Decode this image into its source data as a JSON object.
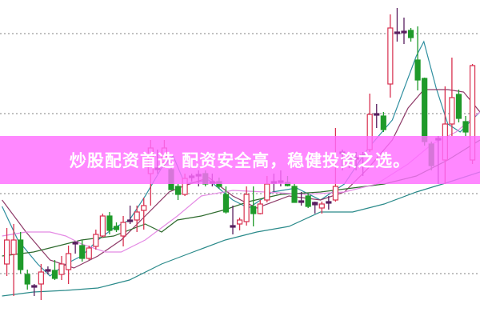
{
  "banner": {
    "text": "炒股配资首选 配资安全高，稳健投资之选。",
    "color": "#ff6eff"
  },
  "chart_data": {
    "type": "candlestick",
    "title": "",
    "xlabel": "",
    "ylabel": "",
    "xlim": [
      0,
      70.1
    ],
    "ylim": [
      4.2,
      44.2
    ],
    "grid": {
      "on": true,
      "style": "dotted",
      "levels": [
        10,
        20,
        30,
        40
      ]
    },
    "colors": {
      "up": "#d8304f",
      "down": "#1f9a2a",
      "doji": "#5a2060",
      "grid": "#9a9a9a"
    },
    "candles_ohlc": [
      [
        11.2,
        15.7,
        9.7,
        14.2
      ],
      [
        12.4,
        16.2,
        7.2,
        14.2
      ],
      [
        14.2,
        15.2,
        10.0,
        10.5
      ],
      [
        9.9,
        10.5,
        8.0,
        8.7
      ],
      [
        8.5,
        8.7,
        7.2,
        8.3
      ],
      [
        8.7,
        11.2,
        6.7,
        10.2
      ],
      [
        10.3,
        10.9,
        9.9,
        10.5
      ],
      [
        10.4,
        11.7,
        9.2,
        9.4
      ],
      [
        9.9,
        12.2,
        9.2,
        11.2
      ],
      [
        10.5,
        13.5,
        8.7,
        12.5
      ],
      [
        13.9,
        14.0,
        12.5,
        13.7
      ],
      [
        13.5,
        14.2,
        11.5,
        11.9
      ],
      [
        11.9,
        13.5,
        11.7,
        13.2
      ],
      [
        13.4,
        15.5,
        13.0,
        14.9
      ],
      [
        14.7,
        17.5,
        14.5,
        17.2
      ],
      [
        17.2,
        17.7,
        14.9,
        15.4
      ],
      [
        15.9,
        16.4,
        15.2,
        15.5
      ],
      [
        14.7,
        17.2,
        13.4,
        16.4
      ],
      [
        16.5,
        18.5,
        16.2,
        16.7
      ],
      [
        16.7,
        18.5,
        15.2,
        17.7
      ],
      [
        17.9,
        19.5,
        15.5,
        18.5
      ],
      [
        22.5,
        26.7,
        18.5,
        25.7
      ],
      [
        23.2,
        25.5,
        22.5,
        23.0
      ],
      [
        23.9,
        26.7,
        23.2,
        25.7
      ],
      [
        23.0,
        23.5,
        20.4,
        20.5
      ],
      [
        20.9,
        21.2,
        19.2,
        19.9
      ],
      [
        19.9,
        22.5,
        19.7,
        21.9
      ],
      [
        22.2,
        22.5,
        21.5,
        22.0
      ],
      [
        22.3,
        22.9,
        20.9,
        22.4
      ],
      [
        22.5,
        22.9,
        20.9,
        21.2
      ],
      [
        21.5,
        22.5,
        20.9,
        21.4
      ],
      [
        21.5,
        22.0,
        20.6,
        20.9
      ],
      [
        19.9,
        20.9,
        17.5,
        17.7
      ],
      [
        16.0,
        18.5,
        14.9,
        15.8
      ],
      [
        16.2,
        17.0,
        15.4,
        16.7
      ],
      [
        16.5,
        20.9,
        16.0,
        19.9
      ],
      [
        18.4,
        20.9,
        15.9,
        17.5
      ],
      [
        17.5,
        19.2,
        17.4,
        18.7
      ],
      [
        19.2,
        22.2,
        18.9,
        21.2
      ],
      [
        21.4,
        22.5,
        20.2,
        21.5
      ],
      [
        21.4,
        22.9,
        20.9,
        21.6
      ],
      [
        21.4,
        22.2,
        20.9,
        21.0
      ],
      [
        20.9,
        21.2,
        18.9,
        18.9
      ],
      [
        18.9,
        20.2,
        18.5,
        19.1
      ],
      [
        19.7,
        20.0,
        18.2,
        18.4
      ],
      [
        18.9,
        19.0,
        17.5,
        18.6
      ],
      [
        18.2,
        19.0,
        17.5,
        18.7
      ],
      [
        18.8,
        19.7,
        18.0,
        19.0
      ],
      [
        19.2,
        28.2,
        19.0,
        20.9
      ],
      [
        25.0,
        25.5,
        22.9,
        25.2
      ],
      [
        24.2,
        24.7,
        23.2,
        24.3
      ],
      [
        24.5,
        25.2,
        22.9,
        24.3
      ],
      [
        24.6,
        25.2,
        22.2,
        24.8
      ],
      [
        25.5,
        32.5,
        25.2,
        29.9
      ],
      [
        30.0,
        31.2,
        28.2,
        29.8
      ],
      [
        29.7,
        30.2,
        27.7,
        28.0
      ],
      [
        33.7,
        42.4,
        32.0,
        40.7
      ],
      [
        40.1,
        43.2,
        39.0,
        40.2
      ],
      [
        40.2,
        42.0,
        38.7,
        40.3
      ],
      [
        40.4,
        40.7,
        39.0,
        39.5
      ],
      [
        36.7,
        40.9,
        32.9,
        34.2
      ],
      [
        34.4,
        34.5,
        26.0,
        26.5
      ],
      [
        26.2,
        26.5,
        22.9,
        23.5
      ],
      [
        26.7,
        27.2,
        21.2,
        26.9
      ],
      [
        24.2,
        33.4,
        21.2,
        28.7
      ],
      [
        28.7,
        37.0,
        27.2,
        32.0
      ],
      [
        32.4,
        33.0,
        28.9,
        29.4
      ],
      [
        29.0,
        29.7,
        27.2,
        27.7
      ],
      [
        24.2,
        36.2,
        23.7,
        36.0
      ]
    ],
    "moving_averages": [
      {
        "color": "#2f8fa0",
        "points": [
          [
            0.3,
            18.4
          ],
          [
            2.6,
            14.2
          ],
          [
            5.5,
            11.2
          ],
          [
            7.3,
            9.7
          ],
          [
            9.6,
            11.2
          ],
          [
            11.9,
            12.2
          ],
          [
            14.3,
            14.2
          ],
          [
            16.6,
            15.7
          ],
          [
            18.9,
            16.7
          ],
          [
            21.2,
            19.7
          ],
          [
            23.6,
            23.2
          ],
          [
            25.3,
            24.7
          ],
          [
            27.0,
            21.2
          ],
          [
            30.5,
            21.7
          ],
          [
            34.0,
            19.2
          ],
          [
            36.3,
            18.2
          ],
          [
            39.8,
            20.2
          ],
          [
            43.3,
            20.7
          ],
          [
            46.8,
            19.2
          ],
          [
            50.3,
            21.2
          ],
          [
            53.8,
            25.7
          ],
          [
            57.3,
            29.2
          ],
          [
            60.8,
            37.2
          ],
          [
            61.9,
            39.0
          ],
          [
            63.7,
            33.2
          ],
          [
            65.4,
            28.7
          ],
          [
            67.2,
            27.7
          ],
          [
            68.9,
            29.2
          ],
          [
            70.1,
            30.2
          ]
        ]
      },
      {
        "color": "#8e3a68",
        "points": [
          [
            0.3,
            19.2
          ],
          [
            3.8,
            15.2
          ],
          [
            7.3,
            11.7
          ],
          [
            10.8,
            10.7
          ],
          [
            14.3,
            12.2
          ],
          [
            17.7,
            14.2
          ],
          [
            21.2,
            17.2
          ],
          [
            24.7,
            20.2
          ],
          [
            27.0,
            21.0
          ],
          [
            30.5,
            22.0
          ],
          [
            34.0,
            19.7
          ],
          [
            37.5,
            18.2
          ],
          [
            42.2,
            19.7
          ],
          [
            46.8,
            19.2
          ],
          [
            50.3,
            20.2
          ],
          [
            53.8,
            23.2
          ],
          [
            57.3,
            26.7
          ],
          [
            59.6,
            30.7
          ],
          [
            61.9,
            33.0
          ],
          [
            65.4,
            33.0
          ],
          [
            67.7,
            32.7
          ],
          [
            70.1,
            30.2
          ]
        ]
      },
      {
        "color": "#2e6b2e",
        "points": [
          [
            0.3,
            12.2
          ],
          [
            4.9,
            12.7
          ],
          [
            9.6,
            13.7
          ],
          [
            11.9,
            14.2
          ],
          [
            16.6,
            14.7
          ],
          [
            21.2,
            16.2
          ],
          [
            23.6,
            15.2
          ],
          [
            25.9,
            16.7
          ],
          [
            29.4,
            17.2
          ],
          [
            32.9,
            18.0
          ],
          [
            36.3,
            19.0
          ],
          [
            41.0,
            19.9
          ],
          [
            46.8,
            20.2
          ],
          [
            51.5,
            20.7
          ],
          [
            56.1,
            21.2
          ],
          [
            60.8,
            22.2
          ],
          [
            65.4,
            24.2
          ],
          [
            70.1,
            26.7
          ]
        ]
      },
      {
        "color": "#e48ae4",
        "points": [
          [
            0.3,
            14.7
          ],
          [
            3.8,
            15.2
          ],
          [
            7.3,
            15.2
          ],
          [
            9.6,
            14.7
          ],
          [
            11.9,
            13.7
          ],
          [
            15.4,
            12.7
          ],
          [
            17.7,
            12.7
          ],
          [
            21.2,
            14.2
          ],
          [
            25.9,
            17.2
          ],
          [
            29.4,
            19.7
          ],
          [
            34.0,
            20.4
          ],
          [
            38.7,
            20.2
          ],
          [
            44.5,
            19.9
          ],
          [
            50.3,
            20.2
          ],
          [
            55.0,
            21.2
          ],
          [
            59.6,
            23.7
          ],
          [
            63.1,
            26.2
          ],
          [
            66.6,
            27.7
          ],
          [
            70.1,
            30.2
          ]
        ]
      },
      {
        "color": "#2a8a8a",
        "points": [
          [
            0.3,
            7.2
          ],
          [
            4.9,
            7.7
          ],
          [
            9.6,
            7.9
          ],
          [
            14.3,
            8.2
          ],
          [
            18.9,
            9.2
          ],
          [
            23.6,
            11.2
          ],
          [
            28.2,
            12.7
          ],
          [
            32.9,
            14.2
          ],
          [
            37.5,
            15.2
          ],
          [
            42.2,
            15.9
          ],
          [
            46.8,
            17.7
          ],
          [
            51.5,
            17.7
          ],
          [
            56.1,
            18.7
          ],
          [
            60.8,
            20.2
          ],
          [
            65.4,
            21.4
          ],
          [
            70.1,
            22.7
          ]
        ]
      }
    ]
  }
}
